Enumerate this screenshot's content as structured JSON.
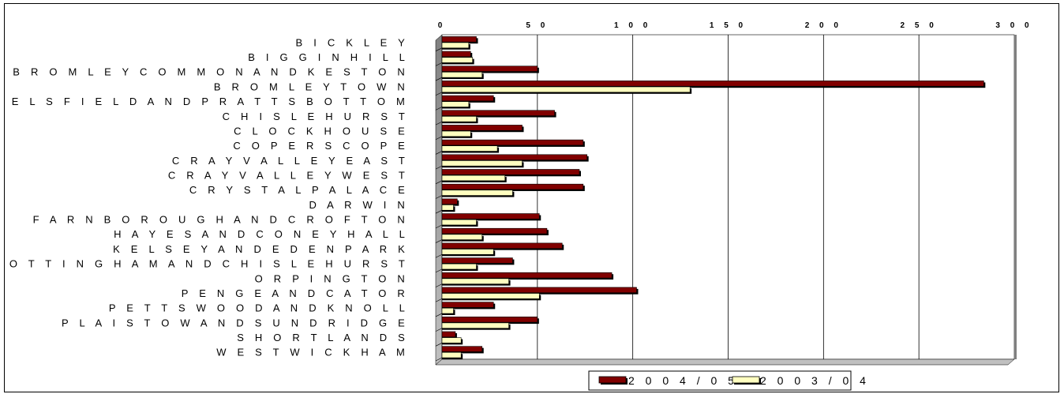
{
  "chart_data": {
    "type": "bar",
    "orientation": "horizontal",
    "categories": [
      "B I C K L E Y",
      "B I G G I N  H I L L",
      "B R O M L E Y  C O M M O N  A N D  K E S T O N",
      "B R O M L E Y  T O W N",
      "C H E L S F I E L D  A N D  P R A T T S  B O T T O M",
      "C H I S L E H U R S T",
      "C L O C K  H O U S E",
      "C O P E R S  C O P E",
      "C R A Y  V A L L E Y  E A S T",
      "C R A Y  V A L L E Y  W E S T",
      "C R Y S T A L  P A L A C E",
      "D A R W I N",
      "F A R N B O R O U G H  A N D  C R O F T O N",
      "H A Y E S  A N D  C O N E Y  H A L L",
      "K E L S E Y  A N D  E D E N  P A R K",
      "M O T T I N G H A M  A N D  C H I S L E H U R S T",
      "O R P I N G T O N",
      "P E N G E  A N D  C A T O R",
      "P E T T S  W O O D  A N D  K N O L L",
      "P L A I S T O W  A N D  S U N D R I D G E",
      "S H O R T L A N D S",
      "W E S T  W I C K H A M"
    ],
    "series": [
      {
        "name": "2 0 0 4 / 0 5",
        "color": "#800000",
        "values": [
          18,
          15,
          50,
          284,
          27,
          59,
          42,
          74,
          76,
          72,
          74,
          8,
          51,
          55,
          63,
          37,
          89,
          102,
          27,
          50,
          7,
          21
        ]
      },
      {
        "name": "2 0 0 3 / 0 4",
        "color": "#ffffc0",
        "values": [
          14,
          16,
          21,
          130,
          14,
          18,
          15,
          29,
          42,
          33,
          37,
          6,
          18,
          21,
          27,
          18,
          35,
          51,
          6,
          35,
          10,
          10
        ]
      }
    ],
    "xlim": [
      0,
      300
    ],
    "xticks": [
      "0",
      "5 0",
      "1 0 0",
      "1 5 0",
      "2 0 0",
      "2 5 0",
      "3 0 0"
    ],
    "xtick_values": [
      0,
      50,
      100,
      150,
      200,
      250,
      300
    ],
    "grid": "vertical",
    "legend_position": "bottom",
    "title": "",
    "xlabel": "",
    "ylabel": ""
  }
}
